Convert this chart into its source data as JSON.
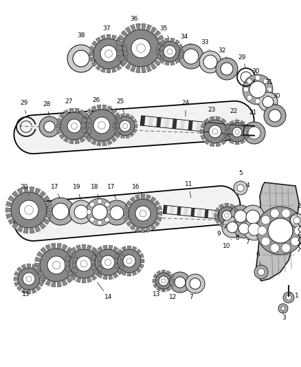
{
  "bg_color": "#ffffff",
  "lc": "#1a1a1a",
  "fig_width": 4.38,
  "fig_height": 5.33,
  "dpi": 100,
  "gear_dark": "#555555",
  "gear_mid": "#888888",
  "gear_light": "#bbbbbb",
  "ring_fill": "#cccccc",
  "shaft_dark": "#333333",
  "shaft_light": "#dddddd",
  "housing_fill": "#c8c8c8",
  "band_fill": "#f5f5f5"
}
